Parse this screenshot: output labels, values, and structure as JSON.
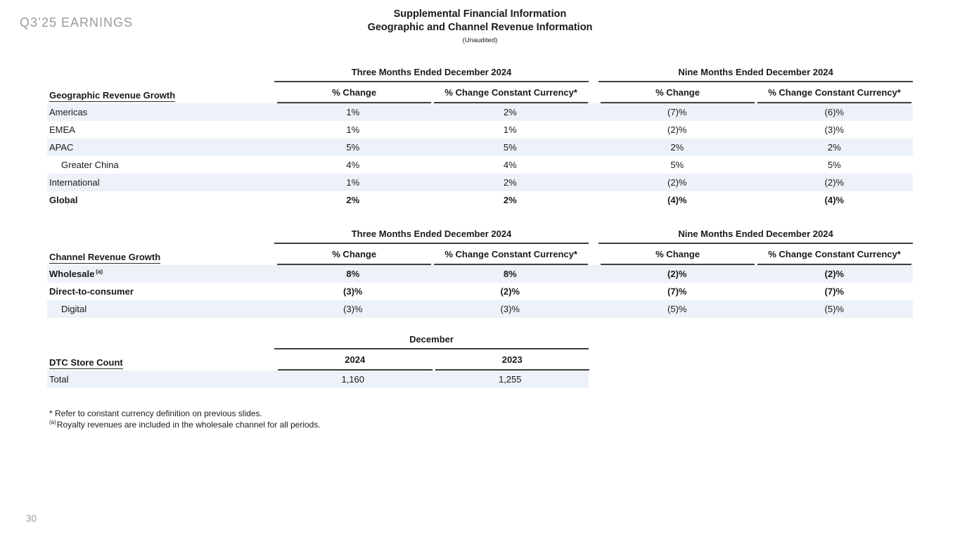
{
  "slide": {
    "eyebrow": "Q3’25 EARNINGS",
    "page_number": "30",
    "title_line1": "Supplemental Financial Information",
    "title_line2": "Geographic and Channel Revenue Information",
    "title_line3": "(Unaudited)"
  },
  "columns": {
    "three_months": "Three Months Ended December 2024",
    "nine_months": "Nine Months Ended December 2024",
    "pct_change": "% Change",
    "pct_change_cc": "% Change Constant Currency*"
  },
  "geo": {
    "section_label": "Geographic Revenue Growth",
    "rows": [
      {
        "label": "Americas",
        "values": [
          "1%",
          "2%",
          "(7)%",
          "(6)%"
        ]
      },
      {
        "label": "EMEA",
        "values": [
          "1%",
          "1%",
          "(2)%",
          "(3)%"
        ]
      },
      {
        "label": "APAC",
        "values": [
          "5%",
          "5%",
          "2%",
          "2%"
        ]
      },
      {
        "label": "Greater China",
        "values": [
          "4%",
          "4%",
          "5%",
          "5%"
        ]
      },
      {
        "label": "International",
        "values": [
          "1%",
          "2%",
          "(2)%",
          "(2)%"
        ]
      },
      {
        "label": "Global",
        "values": [
          "2%",
          "2%",
          "(4)%",
          "(4)%"
        ]
      }
    ]
  },
  "channel": {
    "section_label": "Channel Revenue Growth",
    "rows": [
      {
        "label": "Wholesale",
        "superscript": "(a)",
        "values": [
          "8%",
          "8%",
          "(2)%",
          "(2)%"
        ]
      },
      {
        "label": "Direct-to-consumer",
        "values": [
          "(3)%",
          "(2)%",
          "(7)%",
          "(7)%"
        ]
      },
      {
        "label": "Digital",
        "values": [
          "(3)%",
          "(3)%",
          "(5)%",
          "(5)%"
        ]
      }
    ]
  },
  "stores": {
    "section_label": "DTC Store Count",
    "group_header": "December",
    "year_2024": "2024",
    "year_2023": "2023",
    "row_label": "Total",
    "values": [
      "1,160",
      "1,255"
    ]
  },
  "footnotes": {
    "line1": "* Refer to constant currency definition on previous slides.",
    "line2_sup": "(a)",
    "line2_text": "Royalty revenues are included in the wholesale channel for all periods."
  },
  "colors": {
    "stripe": "#edf1f8",
    "rule": "#3f3f3f",
    "muted_text": "#9b9b9b"
  }
}
